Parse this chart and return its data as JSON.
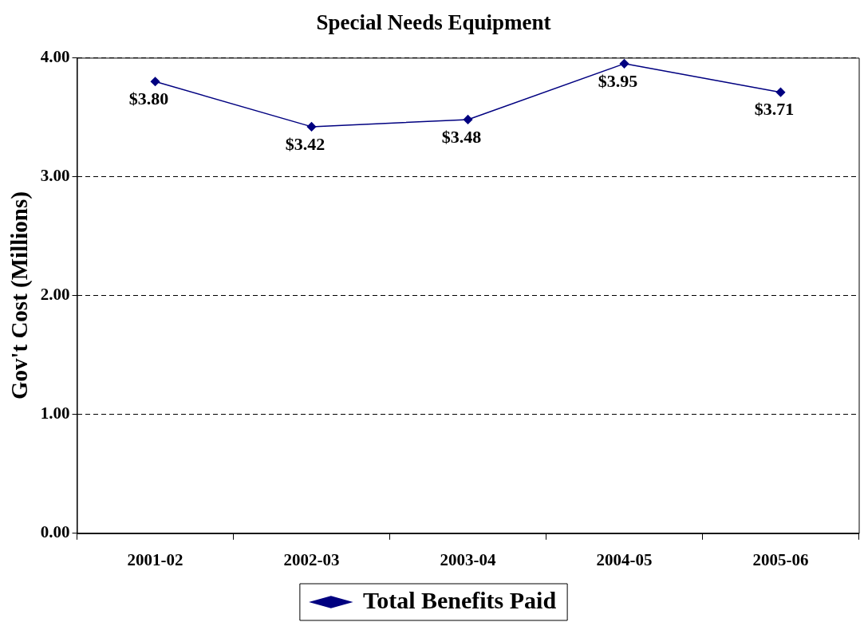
{
  "chart_data": {
    "type": "line",
    "title": "Special Needs Equipment",
    "ylabel": "Gov't Cost (Millions)",
    "categories": [
      "2001-02",
      "2002-03",
      "2003-04",
      "2004-05",
      "2005-06"
    ],
    "series": [
      {
        "name": "Total Benefits Paid",
        "color": "#000080",
        "values": [
          3.8,
          3.42,
          3.48,
          3.95,
          3.71
        ],
        "value_labels": [
          "$3.80",
          "$3.42",
          "$3.48",
          "$3.95",
          "$3.71"
        ]
      }
    ],
    "ylim": [
      0,
      4
    ],
    "yticks": [
      {
        "value": 0,
        "label": "0.00"
      },
      {
        "value": 1,
        "label": "1.00"
      },
      {
        "value": 2,
        "label": "2.00"
      },
      {
        "value": 3,
        "label": "3.00"
      },
      {
        "value": 4,
        "label": "4.00"
      }
    ],
    "grid": "y",
    "legend": "bottom",
    "marker": "diamond",
    "line_style": "solid"
  }
}
